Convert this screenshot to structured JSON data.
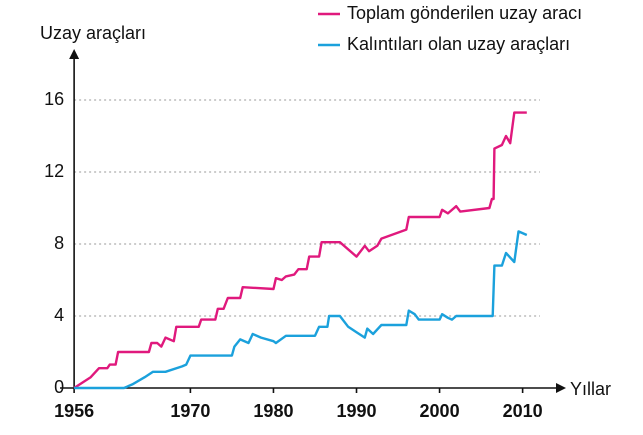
{
  "chart_data": {
    "type": "line",
    "y_label": "Uzay araçları",
    "x_label": "Yıllar",
    "xlim": [
      1954.3,
      2014.5
    ],
    "ylim": [
      0,
      18.5
    ],
    "xticks": [
      1956,
      1970,
      1980,
      1990,
      2000,
      2010
    ],
    "yticks": [
      0,
      4,
      8,
      12,
      16
    ],
    "grid": true,
    "legend": "top-right",
    "series": [
      {
        "name": "Toplam gönderilen uzay aracı",
        "color": "#e0197d",
        "x": [
          1956,
          1957,
          1958,
          1959,
          1960,
          1960.3,
          1961,
          1961.3,
          1965,
          1965.3,
          1966,
          1966.5,
          1967,
          1968,
          1968.3,
          1971,
          1971.3,
          1973,
          1973.3,
          1974,
          1974.5,
          1976,
          1976.3,
          1980,
          1980.3,
          1981,
          1981.5,
          1982.5,
          1983,
          1984,
          1984.3,
          1985.5,
          1985.8,
          1988,
          1990,
          1991,
          1991.5,
          1992.5,
          1993,
          1996,
          1996.3,
          2000,
          2000.3,
          2001,
          2002,
          2002.5,
          2006,
          2006.3,
          2006.5,
          2006.6,
          2007.5,
          2008,
          2008.5,
          2009,
          2010.5
        ],
        "values": [
          0,
          0.3,
          0.6,
          1.1,
          1.1,
          1.3,
          1.3,
          2,
          2,
          2.5,
          2.5,
          2.3,
          2.8,
          2.6,
          3.4,
          3.4,
          3.8,
          3.8,
          4.4,
          4.4,
          5,
          5,
          5.6,
          5.5,
          6.1,
          6.0,
          6.2,
          6.3,
          6.6,
          6.6,
          7.3,
          7.3,
          8.1,
          8.1,
          7.3,
          7.9,
          7.6,
          7.9,
          8.3,
          8.8,
          9.5,
          9.5,
          9.9,
          9.7,
          10.1,
          9.8,
          10,
          10.5,
          10.5,
          13.3,
          13.5,
          14,
          13.6,
          15.3,
          15.3
        ]
      },
      {
        "name": "Kalıntıları olan uzay araçları",
        "color": "#1ba1dc",
        "x": [
          1956,
          1962,
          1963,
          1964.5,
          1965.5,
          1967,
          1969,
          1969.5,
          1970,
          1975,
          1975.3,
          1976,
          1977,
          1977.5,
          1978.5,
          1980,
          1980.3,
          1981.5,
          1985,
          1985.5,
          1986.5,
          1986.7,
          1988,
          1989,
          1990,
          1991,
          1991.3,
          1992,
          1993,
          1996,
          1996.3,
          1997,
          1997.5,
          2000,
          2000.3,
          2001,
          2001.5,
          2002,
          2006.4,
          2006.6,
          2007.5,
          2008,
          2009,
          2009.5,
          2010.5
        ],
        "values": [
          0,
          0,
          0.2,
          0.6,
          0.9,
          0.9,
          1.2,
          1.3,
          1.8,
          1.8,
          2.3,
          2.7,
          2.5,
          3,
          2.8,
          2.6,
          2.5,
          2.9,
          2.9,
          3.4,
          3.4,
          4,
          4,
          3.4,
          3.1,
          2.8,
          3.3,
          3,
          3.5,
          3.5,
          4.3,
          4.1,
          3.8,
          3.8,
          4.1,
          3.9,
          3.8,
          4,
          4,
          6.8,
          6.8,
          7.5,
          7,
          8.7,
          8.5
        ]
      }
    ]
  }
}
